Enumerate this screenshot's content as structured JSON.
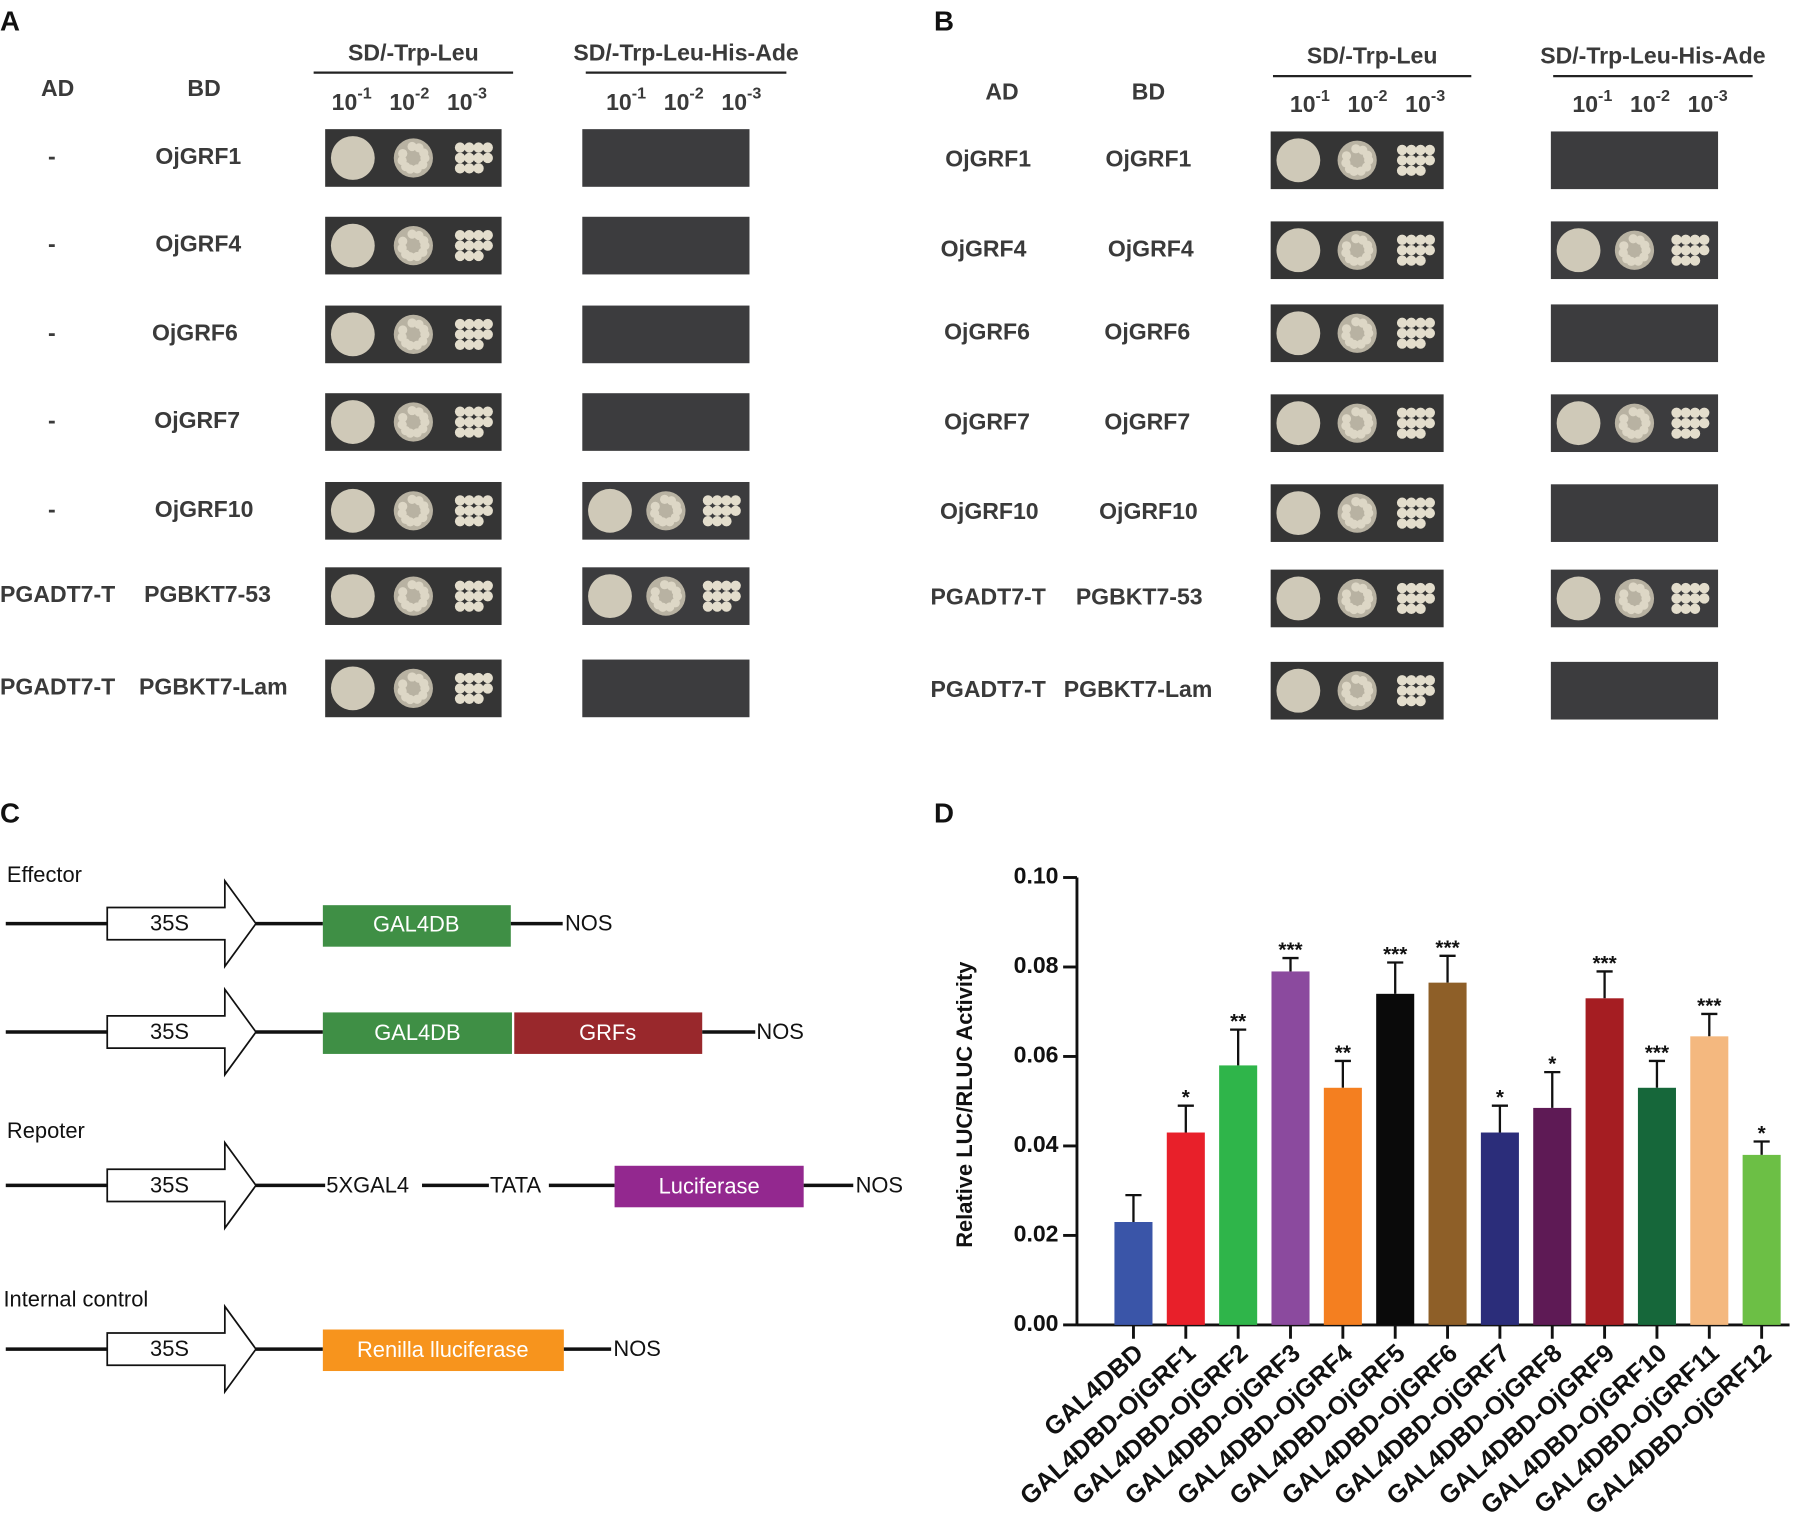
{
  "panels": {
    "A": {
      "label": "A",
      "ad_header": "AD",
      "bd_header": "BD",
      "media": [
        "SD/-Trp-Leu",
        "SD/-Trp-Leu-His-Ade"
      ],
      "dilutions": [
        {
          "base": "10",
          "exponent": "-1"
        },
        {
          "base": "10",
          "exponent": "-2"
        },
        {
          "base": "10",
          "exponent": "-3"
        }
      ],
      "rows": [
        {
          "ad": "-",
          "bd": "OjGRF1"
        },
        {
          "ad": "-",
          "bd": "OjGRF4"
        },
        {
          "ad": "-",
          "bd": "OjGRF6"
        },
        {
          "ad": "-",
          "bd": "OjGRF7"
        },
        {
          "ad": "-",
          "bd": "OjGRF10"
        },
        {
          "ad": "PGADT7-T",
          "bd": "PGBKT7-53"
        },
        {
          "ad": "PGADT7-T",
          "bd": "PGBKT7-Lam"
        }
      ]
    },
    "B": {
      "label": "B",
      "ad_header": "AD",
      "bd_header": "BD",
      "media": [
        "SD/-Trp-Leu",
        "SD/-Trp-Leu-His-Ade"
      ],
      "dilutions": [
        {
          "base": "10",
          "exponent": "-1"
        },
        {
          "base": "10",
          "exponent": "-2"
        },
        {
          "base": "10",
          "exponent": "-3"
        }
      ],
      "rows": [
        {
          "ad": "OjGRF1",
          "bd": "OjGRF1"
        },
        {
          "ad": "OjGRF4",
          "bd": "OjGRF4"
        },
        {
          "ad": "OjGRF6",
          "bd": "OjGRF6"
        },
        {
          "ad": "OjGRF7",
          "bd": "OjGRF7"
        },
        {
          "ad": "OjGRF10",
          "bd": "OjGRF10"
        },
        {
          "ad": "PGADT7-T",
          "bd": "PGBKT7-53"
        },
        {
          "ad": "PGADT7-T",
          "bd": "PGBKT7-Lam"
        }
      ]
    },
    "C": {
      "label": "C",
      "effector": {
        "title": "Effector",
        "cassette1": {
          "promoter": "35S",
          "fusion": "GAL4DB",
          "terminator": "NOS"
        },
        "cassette2": {
          "promoter": "35S",
          "fusion": "GAL4DB",
          "gene": "GRFs",
          "terminator": "NOS"
        }
      },
      "reporter": {
        "title": "Repoter",
        "promoter": "35S",
        "element1": "5XGAL4",
        "element2": "TATA",
        "gene": "Luciferase",
        "terminator": "NOS"
      },
      "control": {
        "title": "Internal control",
        "promoter": "35S",
        "gene": "Renilla lluciferase",
        "terminator": "NOS"
      }
    },
    "D": {
      "label": "D"
    }
  },
  "chart_data": {
    "type": "bar",
    "y_label": "Relative LUC/RLUC Activity",
    "categories": [
      "GAL4DBD",
      "GAL4DBD-OjGRF1",
      "GAL4DBD-OjGRF2",
      "GAL4DBD-OjGRF3",
      "GAL4DBD-OjGRF4",
      "GAL4DBD-OjGRF5",
      "GAL4DBD-OjGRF6",
      "GAL4DBD-OjGRF7",
      "GAL4DBD-OjGRF8",
      "GAL4DBD-OjGRF9",
      "GAL4DBD-OjGRF10",
      "GAL4DBD-OjGRF11",
      "GAL4DBD-OjGRF12"
    ],
    "values": [
      0.023,
      0.043,
      0.058,
      0.079,
      0.053,
      0.074,
      0.0765,
      0.043,
      0.0485,
      0.073,
      0.053,
      0.0645,
      0.038
    ],
    "errors": [
      0.006,
      0.006,
      0.008,
      0.003,
      0.006,
      0.007,
      0.006,
      0.006,
      0.008,
      0.006,
      0.006,
      0.005,
      0.003
    ],
    "significance": [
      null,
      "*",
      "**",
      "***",
      "**",
      "***",
      "***",
      "*",
      "*",
      "***",
      "***",
      "***",
      "*"
    ],
    "colors": [
      "#3a55a8",
      "#e8202a",
      "#2fb54a",
      "#8b4a9e",
      "#f47f20",
      "#0a0a0a",
      "#8e5f28",
      "#2b2d7a",
      "#5e1a55",
      "#a51d22",
      "#16673a",
      "#f4b87f",
      "#6cbf45"
    ],
    "ylim": [
      0,
      0.1
    ],
    "yticks": [
      {
        "value": 0,
        "label": "0.00"
      },
      {
        "value": 0.02,
        "label": "0.02"
      },
      {
        "value": 0.04,
        "label": "0.04"
      },
      {
        "value": 0.06,
        "label": "0.06"
      },
      {
        "value": 0.08,
        "label": "0.08"
      },
      {
        "value": 0.1,
        "label": "0.10"
      }
    ]
  }
}
